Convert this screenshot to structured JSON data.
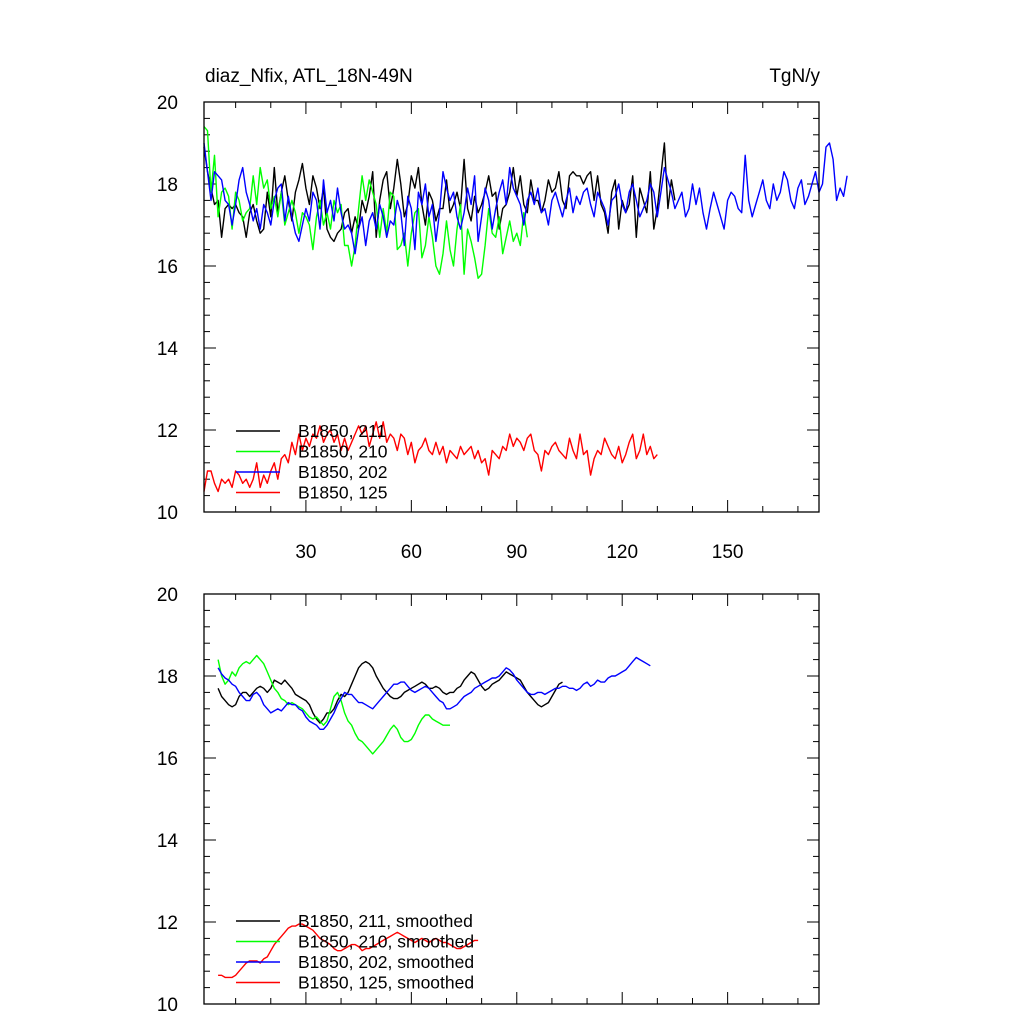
{
  "chart_data": [
    {
      "type": "line",
      "title": "diaz_Nfix, ATL_18N-49N",
      "units": "TgN/y",
      "xlabel": "",
      "ylabel": "",
      "xlim": [
        1,
        176
      ],
      "ylim": [
        10,
        20
      ],
      "xticks": [
        30,
        60,
        90,
        120,
        150
      ],
      "yticks": [
        10,
        12,
        14,
        16,
        18,
        20
      ],
      "grid": false,
      "legend_location": "bottom-left",
      "series": [
        {
          "name": "B1850, 211",
          "color": "#000000",
          "x_start": 1,
          "values": [
            18.9,
            18.3,
            17.9,
            17.5,
            17.6,
            16.7,
            17.4,
            17.5,
            17.4,
            17.5,
            17.3,
            17.2,
            16.7,
            17.3,
            17.5,
            17.1,
            16.8,
            16.9,
            17.8,
            17.2,
            18.4,
            17.3,
            17.8,
            18.2,
            17.6,
            17.1,
            17.8,
            18.1,
            18.5,
            17.9,
            17.5,
            18.2,
            17.9,
            17.4,
            17.9,
            16.9,
            16.7,
            16.6,
            16.8,
            16.9,
            17.3,
            17.4,
            16.8,
            17.2,
            16.9,
            17.6,
            17.3,
            17.7,
            18.3,
            16.7,
            17.6,
            18.1,
            18.3,
            17.4,
            17.9,
            18.6,
            18.0,
            17.2,
            17.5,
            18.2,
            17.9,
            18.4,
            17.5,
            17.0,
            17.8,
            17.6,
            17.1,
            17.4,
            17.4,
            18.1,
            17.3,
            17.5,
            17.8,
            17.4,
            18.6,
            17.4,
            17.1,
            17.7,
            17.3,
            17.5,
            17.8,
            18.2,
            17.7,
            17.8,
            16.9,
            17.4,
            17.5,
            17.8,
            18.4,
            17.7,
            18.2,
            17.5,
            17.3,
            18.1,
            17.6,
            17.6,
            17.3,
            17.6,
            18.1,
            17.8,
            17.9,
            18.3,
            17.6,
            17.4,
            18.2,
            18.3,
            18.2,
            18.2,
            18.0,
            18.2,
            18.3,
            17.6,
            18.2,
            17.5,
            17.3,
            16.8,
            17.8,
            18.1,
            16.9,
            17.6,
            17.3,
            17.5,
            18.2,
            16.7,
            17.9,
            17.6,
            17.3,
            18.3,
            16.9,
            17.4,
            18.2,
            19.0,
            17.4,
            18.1,
            17.6
          ]
        },
        {
          "name": "B1850, 210",
          "color": "#00ff00",
          "x_start": 1,
          "values": [
            19.4,
            19.3,
            17.8,
            18.7,
            17.2,
            17.8,
            17.9,
            17.7,
            16.9,
            17.8,
            17.6,
            17.1,
            17.3,
            17.4,
            18.2,
            17.5,
            18.4,
            17.9,
            18.1,
            17.4,
            17.7,
            17.2,
            17.8,
            17.0,
            17.3,
            17.6,
            17.3,
            16.8,
            17.3,
            17.2,
            17.0,
            16.4,
            17.2,
            17.6,
            17.0,
            17.3,
            16.9,
            17.6,
            17.3,
            17.5,
            16.5,
            16.5,
            16.0,
            16.5,
            17.4,
            18.2,
            17.6,
            18.1,
            17.8,
            17.5,
            16.7,
            17.4,
            16.8,
            17.8,
            17.7,
            16.4,
            16.5,
            16.8,
            16.0,
            16.8,
            17.3,
            17.4,
            16.2,
            16.5,
            17.2,
            16.7,
            16.0,
            15.8,
            16.3,
            17.1,
            16.4,
            16.0,
            16.9,
            17.5,
            15.8,
            16.9,
            16.6,
            16.2,
            15.7,
            15.8,
            16.5,
            17.4,
            16.8,
            16.7,
            17.2,
            16.3,
            16.7,
            17.1,
            16.6,
            16.8,
            16.5,
            17.3,
            16.7
          ]
        },
        {
          "name": "B1850, 202",
          "color": "#0000ff",
          "x_start": 1,
          "values": [
            19.0,
            18.3,
            17.6,
            18.3,
            18.2,
            18.1,
            17.6,
            17.5,
            17.0,
            17.5,
            18.1,
            18.4,
            17.8,
            17.5,
            17.1,
            17.4,
            16.9,
            17.5,
            17.3,
            17.0,
            17.6,
            17.9,
            18.0,
            17.1,
            17.7,
            17.2,
            16.8,
            16.6,
            17.0,
            17.4,
            17.1,
            17.8,
            17.6,
            16.9,
            18.1,
            17.3,
            17.6,
            17.1,
            17.9,
            17.3,
            16.9,
            17.0,
            16.8,
            16.3,
            16.9,
            17.2,
            16.5,
            17.1,
            17.3,
            16.9,
            17.5,
            17.2,
            16.7,
            17.1,
            17.0,
            17.6,
            17.3,
            16.5,
            17.7,
            17.4,
            16.4,
            17.8,
            17.5,
            18.0,
            17.2,
            17.5,
            16.6,
            17.3,
            18.3,
            17.9,
            17.6,
            17.8,
            17.2,
            16.9,
            17.3,
            17.9,
            17.5,
            18.2,
            16.6,
            17.2,
            17.9,
            17.6,
            16.9,
            17.4,
            17.8,
            18.1,
            17.5,
            18.4,
            17.9,
            17.7,
            17.5,
            17.0,
            17.6,
            17.8,
            17.5,
            17.9,
            17.3,
            17.4,
            17.0,
            17.6,
            17.8,
            17.5,
            17.2,
            17.6,
            17.9,
            17.3,
            17.7,
            17.5,
            17.8,
            17.9,
            17.5,
            17.2,
            17.8,
            17.6,
            17.4,
            17.0,
            17.6,
            17.7,
            18.0,
            17.5,
            17.3,
            17.8,
            18.0,
            17.6,
            17.2,
            17.4,
            17.6,
            18.0,
            17.8,
            17.2,
            17.8,
            18.4,
            18.1,
            17.8,
            17.4,
            17.6,
            17.8,
            17.2,
            17.4,
            18.0,
            17.5,
            17.9,
            17.3,
            16.9,
            17.4,
            17.8,
            17.5,
            17.2,
            16.9,
            17.6,
            17.8,
            17.7,
            17.4,
            17.3,
            18.7,
            17.6,
            17.2,
            17.5,
            17.8,
            18.1,
            17.6,
            17.4,
            18.0,
            17.6,
            17.8,
            18.3,
            18.1,
            17.6,
            17.4,
            17.9,
            18.1,
            17.5,
            17.7,
            18.0,
            18.3,
            17.8,
            18.0,
            18.9,
            19.0,
            18.6,
            17.6,
            17.9,
            17.7,
            18.2
          ]
        },
        {
          "name": "B1850, 125",
          "color": "#ff0000",
          "x_start": 1,
          "values": [
            10.5,
            11.0,
            11.0,
            10.7,
            10.5,
            10.8,
            10.7,
            10.8,
            10.6,
            11.0,
            10.9,
            10.7,
            10.8,
            10.6,
            10.8,
            11.2,
            10.6,
            10.9,
            10.7,
            11.0,
            11.2,
            10.8,
            11.3,
            11.4,
            11.2,
            11.7,
            11.4,
            11.9,
            11.5,
            11.8,
            11.6,
            11.9,
            11.8,
            12.1,
            11.7,
            11.9,
            12.0,
            11.7,
            11.9,
            11.5,
            11.8,
            11.5,
            11.7,
            11.9,
            12.1,
            11.9,
            12.1,
            11.6,
            11.9,
            12.2,
            11.8,
            12.2,
            11.7,
            11.9,
            11.8,
            11.5,
            11.9,
            11.8,
            11.4,
            11.7,
            11.2,
            11.5,
            11.6,
            11.8,
            11.5,
            11.4,
            11.7,
            11.4,
            11.6,
            11.2,
            11.5,
            11.4,
            11.3,
            11.6,
            11.4,
            11.5,
            11.6,
            11.3,
            11.5,
            11.2,
            11.3,
            10.9,
            11.5,
            11.4,
            11.3,
            11.6,
            11.5,
            11.9,
            11.6,
            11.8,
            11.7,
            11.5,
            11.8,
            11.9,
            11.5,
            11.4,
            11.0,
            11.5,
            11.4,
            11.6,
            11.7,
            11.5,
            11.4,
            11.3,
            11.8,
            11.5,
            11.3,
            11.9,
            11.4,
            11.5,
            10.9,
            11.3,
            11.5,
            11.4,
            11.8,
            11.6,
            11.4,
            11.3,
            11.6,
            11.2,
            11.4,
            11.7,
            11.9,
            11.3,
            11.5,
            11.9,
            11.4,
            11.6,
            11.3,
            11.4
          ]
        }
      ]
    },
    {
      "type": "line",
      "title": "",
      "xlabel": "",
      "ylabel": "",
      "xlim": [
        1,
        176
      ],
      "ylim": [
        10,
        20
      ],
      "yticks": [
        10,
        12,
        14,
        16,
        18,
        20
      ],
      "grid": false,
      "legend_location": "bottom-left",
      "series": [
        {
          "name": "B1850, 211, smoothed",
          "color": "#000000",
          "x_start": 5,
          "values": [
            17.7,
            17.5,
            17.4,
            17.3,
            17.25,
            17.3,
            17.5,
            17.6,
            17.6,
            17.5,
            17.6,
            17.7,
            17.75,
            17.7,
            17.6,
            17.7,
            17.9,
            17.85,
            17.8,
            17.9,
            17.8,
            17.7,
            17.55,
            17.5,
            17.45,
            17.4,
            17.3,
            17.1,
            16.95,
            16.85,
            16.95,
            17.1,
            17.1,
            17.2,
            17.4,
            17.55,
            17.5,
            17.6,
            17.8,
            18.0,
            18.2,
            18.3,
            18.35,
            18.3,
            18.2,
            18.0,
            17.85,
            17.7,
            17.6,
            17.5,
            17.45,
            17.45,
            17.5,
            17.6,
            17.65,
            17.7,
            17.75,
            17.8,
            17.85,
            17.8,
            17.7,
            17.7,
            17.75,
            17.7,
            17.6,
            17.55,
            17.6,
            17.6,
            17.7,
            17.75,
            17.9,
            18.0,
            18.1,
            18.05,
            17.9,
            17.75,
            17.65,
            17.7,
            17.8,
            17.85,
            17.9,
            18.0,
            18.1,
            18.05,
            18.0,
            17.95,
            17.9,
            17.75,
            17.6,
            17.5,
            17.4,
            17.3,
            17.25,
            17.3,
            17.35,
            17.5,
            17.65,
            17.8,
            17.85
          ]
        },
        {
          "name": "B1850, 210, smoothed",
          "color": "#00ff00",
          "x_start": 5,
          "values": [
            18.4,
            18.0,
            17.8,
            17.9,
            18.1,
            18.0,
            18.2,
            18.3,
            18.35,
            18.3,
            18.4,
            18.5,
            18.4,
            18.3,
            18.1,
            17.9,
            17.7,
            17.6,
            17.45,
            17.4,
            17.3,
            17.35,
            17.3,
            17.25,
            17.2,
            17.1,
            17.0,
            16.95,
            17.0,
            16.9,
            16.8,
            16.9,
            17.2,
            17.5,
            17.6,
            17.4,
            17.1,
            16.9,
            16.8,
            16.6,
            16.45,
            16.4,
            16.3,
            16.2,
            16.1,
            16.2,
            16.3,
            16.4,
            16.55,
            16.7,
            16.8,
            16.7,
            16.5,
            16.4,
            16.4,
            16.45,
            16.6,
            16.8,
            16.95,
            17.05,
            17.05,
            16.95,
            16.9,
            16.85,
            16.8,
            16.8,
            16.8
          ]
        },
        {
          "name": "B1850, 202, smoothed",
          "color": "#0000ff",
          "x_start": 5,
          "values": [
            18.2,
            18.05,
            17.95,
            17.9,
            17.8,
            17.75,
            17.6,
            17.5,
            17.4,
            17.4,
            17.55,
            17.6,
            17.5,
            17.3,
            17.2,
            17.1,
            17.15,
            17.2,
            17.15,
            17.25,
            17.35,
            17.3,
            17.3,
            17.2,
            17.15,
            17.0,
            16.9,
            16.85,
            16.8,
            16.7,
            16.7,
            16.8,
            16.95,
            17.1,
            17.3,
            17.45,
            17.6,
            17.55,
            17.55,
            17.45,
            17.35,
            17.35,
            17.3,
            17.25,
            17.2,
            17.3,
            17.4,
            17.5,
            17.6,
            17.7,
            17.8,
            17.8,
            17.85,
            17.85,
            17.75,
            17.65,
            17.6,
            17.65,
            17.7,
            17.75,
            17.7,
            17.6,
            17.5,
            17.4,
            17.35,
            17.2,
            17.2,
            17.25,
            17.3,
            17.4,
            17.5,
            17.55,
            17.6,
            17.7,
            17.75,
            17.8,
            17.85,
            17.9,
            17.95,
            17.95,
            18.0,
            18.1,
            18.2,
            18.15,
            18.05,
            17.9,
            17.8,
            17.7,
            17.6,
            17.55,
            17.55,
            17.6,
            17.6,
            17.55,
            17.6,
            17.65,
            17.7,
            17.7,
            17.75,
            17.75,
            17.7,
            17.7,
            17.65,
            17.7,
            17.8,
            17.85,
            17.75,
            17.8,
            17.9,
            17.85,
            17.85,
            17.95,
            18.0,
            18.0,
            18.05,
            18.1,
            18.15,
            18.25,
            18.35,
            18.45,
            18.4,
            18.35,
            18.3,
            18.25
          ]
        },
        {
          "name": "B1850, 125, smoothed",
          "color": "#ff0000",
          "x_start": 5,
          "values": [
            10.7,
            10.7,
            10.65,
            10.65,
            10.65,
            10.7,
            10.8,
            10.9,
            11.0,
            11.05,
            11.05,
            11.05,
            11.0,
            11.1,
            11.15,
            11.3,
            11.45,
            11.55,
            11.65,
            11.75,
            11.85,
            11.9,
            11.9,
            11.95,
            11.95,
            11.9,
            11.85,
            11.8,
            11.7,
            11.6,
            11.55,
            11.5,
            11.45,
            11.35,
            11.3,
            11.3,
            11.35,
            11.4,
            11.45,
            11.45,
            11.4,
            11.3,
            11.35,
            11.35,
            11.4,
            11.45,
            11.5,
            11.55,
            11.6,
            11.65,
            11.7,
            11.75,
            11.7,
            11.65,
            11.6,
            11.55,
            11.5,
            11.55,
            11.6,
            11.55,
            11.5,
            11.55,
            11.6,
            11.55,
            11.5,
            11.5,
            11.45,
            11.4,
            11.35,
            11.35,
            11.4,
            11.45,
            11.5,
            11.55,
            11.55
          ]
        }
      ]
    }
  ]
}
